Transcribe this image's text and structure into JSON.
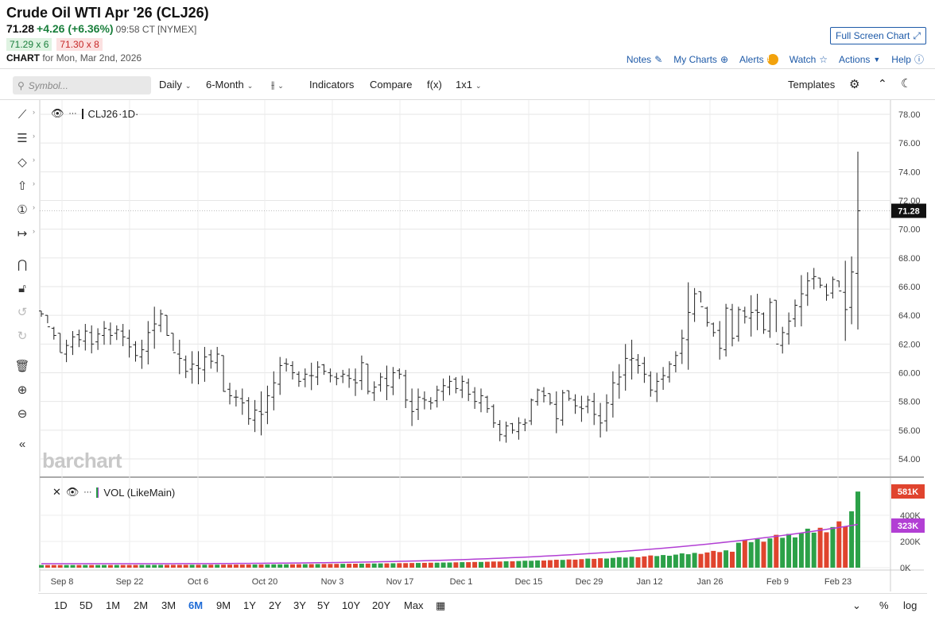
{
  "header": {
    "title": "Crude Oil WTI Apr '26 (CLJ26)",
    "last": "71.28",
    "change": "+4.26 (+6.36%)",
    "time": "09:58 CT [NYMEX]",
    "bid": "71.29 x 6",
    "ask": "71.30 x 8",
    "chart_label": "CHART",
    "chart_date": "for Mon, Mar 2nd, 2026",
    "fullscreen": "Full Screen Chart",
    "links": {
      "notes": "Notes",
      "mycharts": "My Charts",
      "alerts": "Alerts",
      "watch": "Watch",
      "actions": "Actions",
      "help": "Help"
    }
  },
  "toolbar": {
    "search_placeholder": "Symbol...",
    "interval": "Daily",
    "range": "6-Month",
    "indicators": "Indicators",
    "compare": "Compare",
    "fx": "f(x)",
    "layout": "1x1",
    "templates": "Templates"
  },
  "panes": {
    "symbol": "CLJ26",
    "interval": "·1D·",
    "volume": "VOL (LikeMain)",
    "watermark": "barchart"
  },
  "bottom_ranges": [
    "1D",
    "5D",
    "1M",
    "2M",
    "3M",
    "6M",
    "9M",
    "1Y",
    "2Y",
    "3Y",
    "5Y",
    "10Y",
    "20Y",
    "Max"
  ],
  "bottom_right": {
    "percent": "%",
    "log": "log"
  },
  "colors": {
    "up": "#2ca148",
    "down": "#e0442e",
    "avg": "#b23fd4",
    "price": "#222222",
    "last_tag": "#111111"
  },
  "chart_data": {
    "type": "ohlc",
    "price_ticks": [
      "78.00",
      "76.00",
      "74.00",
      "72.00",
      "70.00",
      "68.00",
      "66.00",
      "64.00",
      "62.00",
      "60.00",
      "58.00",
      "56.00",
      "54.00"
    ],
    "ylim": [
      53,
      79
    ],
    "last_price_tag": "71.28",
    "x_tick_labels": [
      "Sep 8",
      "Sep 22",
      "Oct 6",
      "Oct 20",
      "Nov 3",
      "Nov 17",
      "Dec 1",
      "Dec 15",
      "Dec 29",
      "Jan 12",
      "Jan 26",
      "Feb 9",
      "Feb 23"
    ],
    "closes": [
      64.1,
      63.2,
      62.6,
      61.4,
      61.9,
      62.5,
      62.3,
      62.9,
      62.0,
      62.7,
      63.1,
      62.6,
      63.0,
      62.5,
      61.8,
      61.2,
      61.6,
      62.8,
      63.4,
      64.1,
      62.6,
      61.4,
      61.0,
      60.1,
      60.6,
      60.3,
      61.1,
      60.8,
      61.3,
      58.7,
      58.4,
      58.3,
      57.9,
      56.8,
      57.4,
      57.1,
      58.4,
      59.3,
      60.5,
      60.6,
      60.0,
      59.4,
      59.9,
      59.8,
      60.4,
      60.1,
      59.8,
      59.6,
      59.9,
      59.6,
      59.3,
      60.7,
      58.7,
      59.0,
      59.7,
      59.1,
      60.0,
      59.9,
      58.1,
      57.3,
      58.3,
      58.1,
      57.9,
      58.8,
      59.1,
      59.4,
      58.9,
      59.4,
      58.5,
      58.0,
      58.4,
      57.5,
      56.5,
      55.7,
      56.3,
      56.0,
      56.5,
      56.5,
      58.1,
      58.8,
      58.4,
      57.9,
      56.8,
      58.6,
      58.2,
      57.7,
      57.5,
      58.1,
      57.1,
      56.5,
      57.9,
      59.3,
      59.7,
      61.0,
      61.0,
      60.5,
      59.9,
      58.8,
      59.4,
      59.8,
      60.6,
      61.2,
      62.4,
      64.2,
      65.5,
      64.6,
      63.5,
      62.8,
      61.7,
      64.5,
      62.4,
      64.4,
      63.9,
      64.2,
      64.2,
      63.0,
      64.9,
      62.0,
      62.8,
      63.6,
      64.7,
      65.5,
      66.4,
      66.7,
      66.1,
      65.4,
      66.5,
      65.7,
      64.4,
      67.02,
      71.28
    ],
    "highs": [
      64.3,
      63.5,
      63.2,
      62.5,
      62.3,
      62.9,
      63.0,
      63.4,
      63.3,
      63.1,
      63.6,
      63.5,
      63.3,
      63.4,
      63.0,
      62.2,
      62.3,
      63.6,
      64.6,
      64.4,
      63.8,
      62.4,
      62.3,
      61.2,
      61.5,
      61.5,
      61.8,
      61.6,
      61.8,
      61.0,
      59.3,
      58.8,
      58.9,
      58.3,
      58.1,
      58.7,
      59.1,
      60.1,
      61.1,
      61.0,
      60.8,
      60.1,
      60.3,
      60.7,
      60.8,
      60.6,
      60.3,
      60.0,
      60.2,
      60.3,
      60.3,
      61.2,
      60.6,
      59.4,
      60.0,
      60.5,
      60.4,
      60.3,
      60.2,
      58.9,
      58.9,
      58.7,
      58.3,
      59.1,
      59.6,
      59.8,
      59.7,
      59.8,
      59.6,
      59.0,
      58.9,
      58.4,
      57.8,
      56.7,
      56.6,
      56.5,
      56.9,
      56.8,
      58.2,
      58.9,
      59.0,
      58.5,
      58.7,
      58.8,
      58.7,
      58.5,
      58.4,
      58.4,
      58.6,
      57.9,
      58.5,
      60.1,
      60.6,
      62.0,
      62.3,
      61.3,
      61.1,
      60.1,
      60.0,
      60.4,
      60.8,
      61.5,
      63.0,
      66.3,
      65.9,
      65.1,
      64.6,
      63.5,
      63.6,
      64.8,
      64.8,
      64.6,
      64.6,
      65.4,
      65.5,
      64.2,
      65.2,
      63.9,
      63.2,
      64.2,
      65.1,
      66.8,
      67.0,
      67.3,
      66.6,
      66.2,
      66.7,
      65.9,
      67.8,
      68.1,
      75.4
    ]
  }
}
